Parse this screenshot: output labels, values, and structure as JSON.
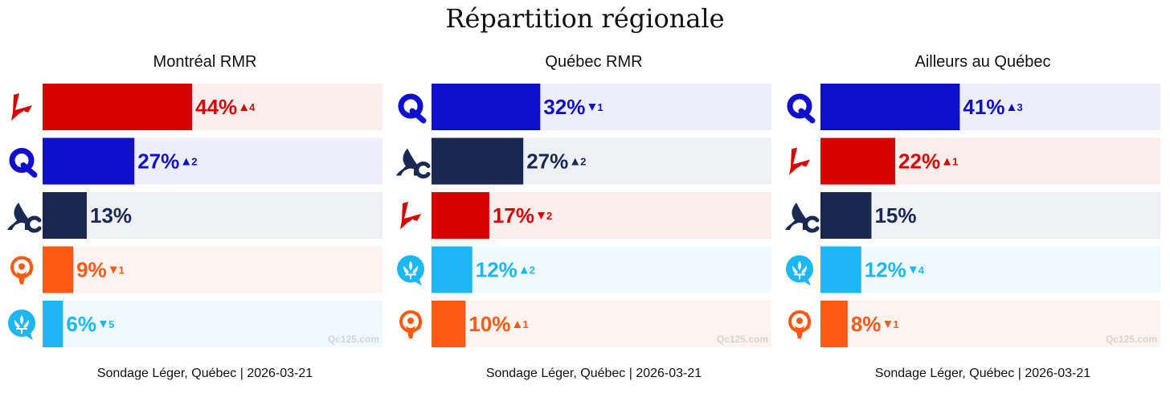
{
  "title": "Répartition régionale",
  "colors": {
    "PLQ": "#d90000",
    "CAQ": "#1010cc",
    "PQ": "#1b2852",
    "QS": "#ff5a14",
    "PCQ": "#1eb7f5"
  },
  "chart_data": [
    {
      "type": "bar",
      "title": "Montréal RMR",
      "xlim": [
        0,
        100
      ],
      "source": "Sondage Léger, Québec | 2026-03-21",
      "watermark": "Qc125.com",
      "bars": [
        {
          "party": "PLQ",
          "icon": "plq-logo-icon",
          "value": 44,
          "label": "44%",
          "change_dir": "up",
          "change": "4"
        },
        {
          "party": "CAQ",
          "icon": "caq-logo-icon",
          "value": 27,
          "label": "27%",
          "change_dir": "up",
          "change": "2"
        },
        {
          "party": "PQ",
          "icon": "pq-logo-icon",
          "value": 13,
          "label": "13%",
          "change_dir": "",
          "change": ""
        },
        {
          "party": "QS",
          "icon": "qs-logo-icon",
          "value": 9,
          "label": "9%",
          "change_dir": "down",
          "change": "1"
        },
        {
          "party": "PCQ",
          "icon": "pcq-logo-icon",
          "value": 6,
          "label": "6%",
          "change_dir": "down",
          "change": "5"
        }
      ]
    },
    {
      "type": "bar",
      "title": "Québec RMR",
      "xlim": [
        0,
        100
      ],
      "source": "Sondage Léger, Québec | 2026-03-21",
      "watermark": "Qc125.com",
      "bars": [
        {
          "party": "CAQ",
          "icon": "caq-logo-icon",
          "value": 32,
          "label": "32%",
          "change_dir": "down",
          "change": "1"
        },
        {
          "party": "PQ",
          "icon": "pq-logo-icon",
          "value": 27,
          "label": "27%",
          "change_dir": "up",
          "change": "2"
        },
        {
          "party": "PLQ",
          "icon": "plq-logo-icon",
          "value": 17,
          "label": "17%",
          "change_dir": "down",
          "change": "2"
        },
        {
          "party": "PCQ",
          "icon": "pcq-logo-icon",
          "value": 12,
          "label": "12%",
          "change_dir": "up",
          "change": "2"
        },
        {
          "party": "QS",
          "icon": "qs-logo-icon",
          "value": 10,
          "label": "10%",
          "change_dir": "up",
          "change": "1"
        }
      ]
    },
    {
      "type": "bar",
      "title": "Ailleurs au Québec",
      "xlim": [
        0,
        100
      ],
      "source": "Sondage Léger, Québec | 2026-03-21",
      "watermark": "Qc125.com",
      "bars": [
        {
          "party": "CAQ",
          "icon": "caq-logo-icon",
          "value": 41,
          "label": "41%",
          "change_dir": "up",
          "change": "3"
        },
        {
          "party": "PLQ",
          "icon": "plq-logo-icon",
          "value": 22,
          "label": "22%",
          "change_dir": "up",
          "change": "1"
        },
        {
          "party": "PQ",
          "icon": "pq-logo-icon",
          "value": 15,
          "label": "15%",
          "change_dir": "",
          "change": ""
        },
        {
          "party": "PCQ",
          "icon": "pcq-logo-icon",
          "value": 12,
          "label": "12%",
          "change_dir": "down",
          "change": "4"
        },
        {
          "party": "QS",
          "icon": "qs-logo-icon",
          "value": 8,
          "label": "8%",
          "change_dir": "down",
          "change": "1"
        }
      ]
    }
  ]
}
